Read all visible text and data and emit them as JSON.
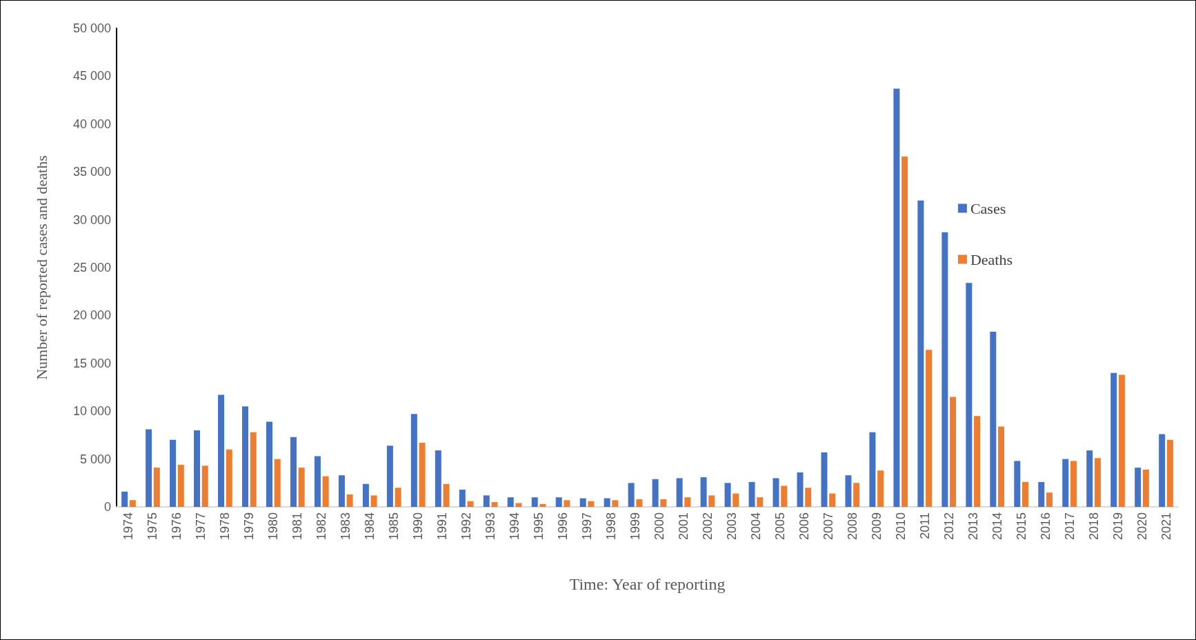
{
  "chart_data": {
    "type": "bar",
    "xlabel": "Time: Year of reporting",
    "ylabel": "Number of reported cases and deaths",
    "categories": [
      "1974",
      "1975",
      "1976",
      "1977",
      "1978",
      "1979",
      "1980",
      "1981",
      "1982",
      "1983",
      "1984",
      "1985",
      "1990",
      "1991",
      "1992",
      "1993",
      "1994",
      "1995",
      "1996",
      "1997",
      "1998",
      "1999",
      "2000",
      "2001",
      "2002",
      "2003",
      "2004",
      "2005",
      "2006",
      "2007",
      "2008",
      "2009",
      "2010",
      "2011",
      "2012",
      "2013",
      "2014",
      "2015",
      "2016",
      "2017",
      "2018",
      "2019",
      "2020",
      "2021"
    ],
    "series": [
      {
        "name": "Cases",
        "color": "#4472c4",
        "values": [
          1600,
          8100,
          7000,
          8000,
          11700,
          10500,
          8900,
          7300,
          5300,
          3300,
          2400,
          6400,
          9700,
          5900,
          1800,
          1200,
          1000,
          1000,
          1000,
          900,
          900,
          2500,
          2900,
          3000,
          3100,
          2500,
          2600,
          3000,
          3600,
          5700,
          3300,
          7800,
          43700,
          32000,
          28700,
          23400,
          18300,
          4800,
          2600,
          5000,
          5900,
          14000,
          4100,
          7600
        ]
      },
      {
        "name": "Deaths",
        "color": "#ed7d31",
        "values": [
          700,
          4100,
          4400,
          4300,
          6000,
          7800,
          5000,
          4100,
          3200,
          1300,
          1200,
          2000,
          6700,
          2400,
          600,
          500,
          400,
          300,
          700,
          600,
          700,
          800,
          800,
          1000,
          1200,
          1400,
          1000,
          2200,
          2000,
          1400,
          2500,
          3800,
          36600,
          16400,
          11500,
          9500,
          8400,
          2600,
          1500,
          4800,
          5100,
          13800,
          3900,
          7000
        ]
      }
    ],
    "ylim": [
      0,
      50000
    ],
    "yticks": [
      0,
      {
        "value": 5000,
        "label": "5 000"
      },
      {
        "value": 10000,
        "label": "10 000"
      },
      {
        "value": 15000,
        "label": "15 000"
      },
      {
        "value": 20000,
        "label": "20 000"
      },
      {
        "value": 25000,
        "label": "25 000"
      },
      {
        "value": 30000,
        "label": "30 000"
      },
      {
        "value": 35000,
        "label": "35 000"
      },
      {
        "value": 40000,
        "label": "40 000"
      },
      {
        "value": 45000,
        "label": "45 000"
      },
      {
        "value": 50000,
        "label": "50 000"
      }
    ],
    "grid": false,
    "legend": "right"
  }
}
